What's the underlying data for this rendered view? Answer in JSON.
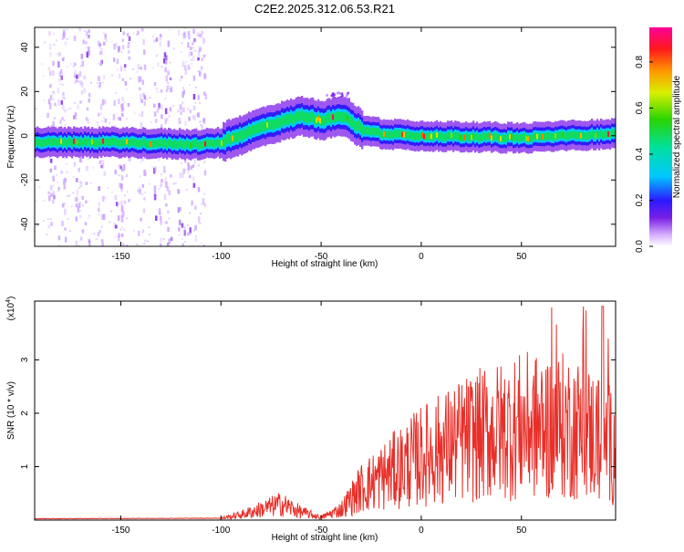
{
  "title": "C2E2.2025.312.06.53.R21",
  "chart_data": [
    {
      "type": "heatmap",
      "title": "",
      "xlabel": "Height of straight line (km)",
      "ylabel": "Frequency (Hz)",
      "xlim": [
        -193,
        97
      ],
      "ylim": [
        -50,
        49
      ],
      "x_ticks": [
        -150,
        -100,
        -50,
        0,
        50
      ],
      "y_ticks": [
        -40,
        -20,
        0,
        20,
        40
      ],
      "colorbar": {
        "label": "Normalized spectral amplitude",
        "range": [
          0,
          0.95
        ],
        "ticks": [
          0.0,
          0.2,
          0.4,
          0.6,
          0.8
        ]
      },
      "ridge": {
        "x": [
          -193,
          -150,
          -110,
          -100,
          -80,
          -60,
          -50,
          -40,
          -30,
          -20,
          0,
          50,
          97
        ],
        "y": [
          -3,
          -3,
          -4,
          -3,
          4,
          9,
          7,
          9,
          3,
          1,
          0,
          -1,
          1
        ]
      }
    },
    {
      "type": "line",
      "title": "",
      "xlabel": "Height of straight line (km)",
      "ylabel": "SNR (10 * v/v)",
      "y_multiplier": "(x10",
      "y_multiplier_exp": "4",
      "y_multiplier_close": ")",
      "xlim": [
        -193,
        97
      ],
      "ylim": [
        0,
        4.1
      ],
      "x_ticks": [
        -150,
        -100,
        -50,
        0,
        50
      ],
      "y_ticks": [
        1,
        2,
        3
      ],
      "color": "#e8302a",
      "envelope": {
        "x": [
          -193,
          -100,
          -90,
          -80,
          -70,
          -60,
          -50,
          -40,
          -35,
          -30,
          -20,
          0,
          25,
          50,
          75,
          92,
          97
        ],
        "y": [
          0.02,
          0.03,
          0.1,
          0.2,
          0.3,
          0.15,
          0.05,
          0.2,
          0.4,
          0.6,
          0.8,
          1.2,
          1.55,
          1.75,
          1.75,
          1.5,
          1.3
        ]
      }
    }
  ]
}
